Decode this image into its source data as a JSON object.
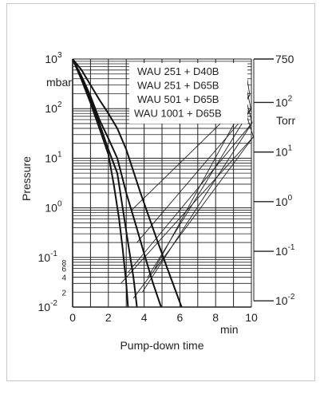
{
  "chart_data": {
    "type": "line",
    "title": "",
    "xlabel": "Pump-down time",
    "x_unit": "min",
    "ylabel": "Pressure",
    "y_unit_left": "mbar",
    "y_unit_right": "Torr",
    "xlim": [
      0,
      10
    ],
    "ylim": [
      0.01,
      1000
    ],
    "y_scale": "log",
    "grid": true,
    "x_ticks": [
      "0",
      "2",
      "4",
      "6",
      "8",
      "10"
    ],
    "y_ticks_left": [
      {
        "value": 1000,
        "base": "10",
        "exp": "3"
      },
      {
        "value": 100,
        "base": "10",
        "exp": "2"
      },
      {
        "value": 10,
        "base": "10",
        "exp": "1"
      },
      {
        "value": 1,
        "base": "10",
        "exp": "0"
      },
      {
        "value": 0.1,
        "base": "10",
        "exp": "-1"
      },
      {
        "value": 0.01,
        "base": "10",
        "exp": "-2"
      }
    ],
    "y_minor_labels_left": [
      {
        "value": 0.08,
        "label": "8"
      },
      {
        "value": 0.06,
        "label": "6"
      },
      {
        "value": 0.04,
        "label": "4"
      },
      {
        "value": 0.02,
        "label": "2"
      }
    ],
    "y_ticks_right": [
      {
        "torr": 750,
        "base": "750",
        "exp": ""
      },
      {
        "torr": 100,
        "base": "10",
        "exp": "2"
      },
      {
        "torr": 10,
        "base": "10",
        "exp": "1"
      },
      {
        "torr": 1,
        "base": "10",
        "exp": "0"
      },
      {
        "torr": 0.1,
        "base": "10",
        "exp": "-1"
      },
      {
        "torr": 0.01,
        "base": "10",
        "exp": "-2"
      }
    ],
    "legend_position": "top-right",
    "series": [
      {
        "name": "WAU 251   + D40B",
        "x": [
          0,
          0.5,
          1,
          1.5,
          2,
          2.5,
          3.0,
          3.8,
          4.6,
          5.3,
          6.1
        ],
        "y": [
          1000,
          600,
          300,
          150,
          80,
          40,
          15,
          2,
          0.3,
          0.06,
          0.01
        ]
      },
      {
        "name": "WAU 251   + D65B",
        "x": [
          0,
          0.5,
          1,
          1.5,
          2,
          2.5,
          3.0,
          3.5,
          4.0,
          4.5,
          4.95
        ],
        "y": [
          1000,
          450,
          180,
          60,
          25,
          10,
          2,
          0.5,
          0.12,
          0.03,
          0.01
        ]
      },
      {
        "name": "WAU 501   + D65B",
        "x": [
          0,
          0.5,
          1,
          1.5,
          2,
          2.5,
          2.8,
          3.1,
          3.4,
          3.6
        ],
        "y": [
          1000,
          400,
          150,
          50,
          15,
          5,
          1,
          0.2,
          0.04,
          0.01
        ]
      },
      {
        "name": "WAU 1001 + D65B",
        "x": [
          0,
          0.5,
          1,
          1.5,
          2,
          2.3,
          2.6,
          2.8,
          3.0,
          3.1
        ],
        "y": [
          1000,
          380,
          130,
          40,
          12,
          3,
          0.6,
          0.15,
          0.03,
          0.01
        ]
      }
    ]
  }
}
